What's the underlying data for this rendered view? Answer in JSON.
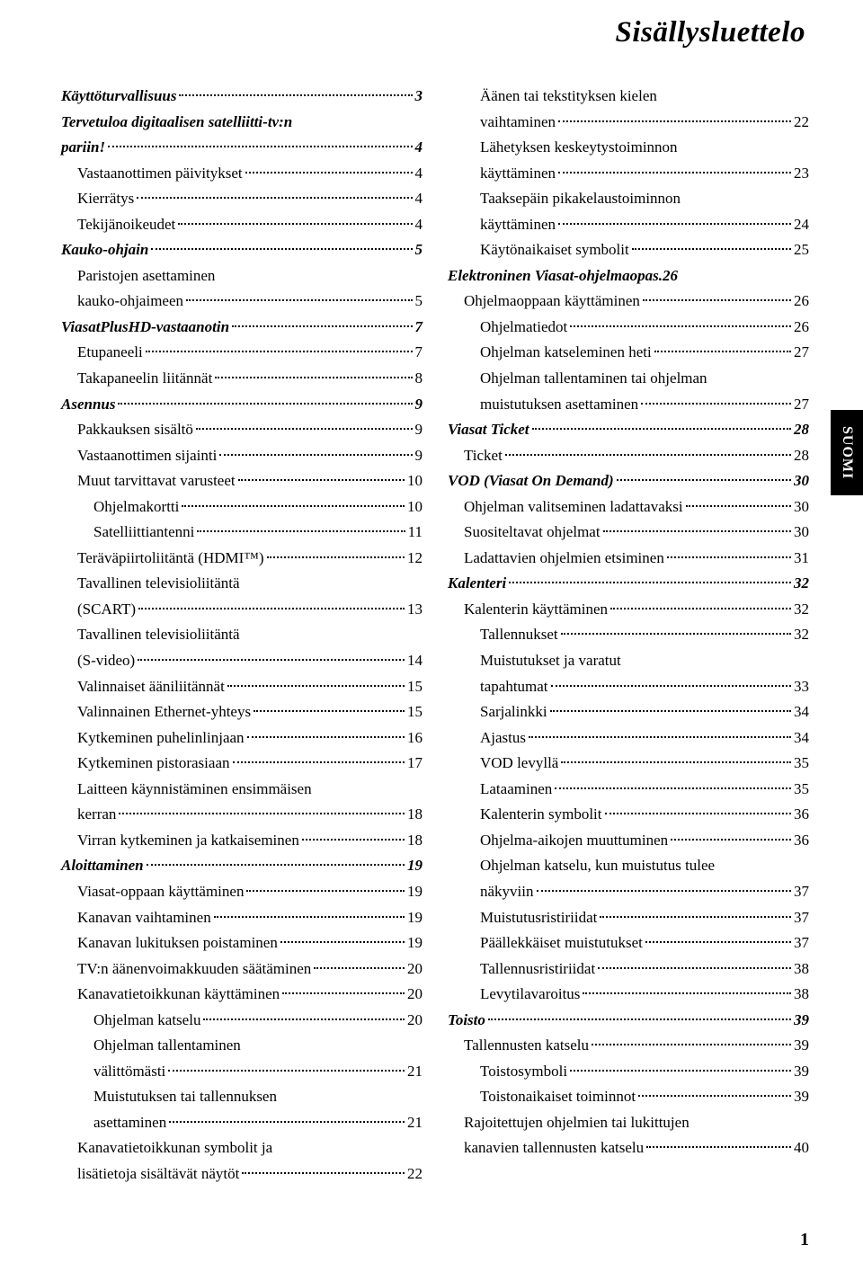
{
  "doc_title": "Sisällysluettelo",
  "side_tab": "SUOMI",
  "page_number": "1",
  "fonts": {
    "title_size_pt": 33,
    "body_size_pt": 17,
    "side_tab_size_pt": 16
  },
  "colors": {
    "text": "#000000",
    "background": "#ffffff",
    "tab_bg": "#000000",
    "tab_text": "#ffffff"
  },
  "left_col": [
    {
      "label": "Käyttöturvallisuus",
      "page": "3",
      "level": 0
    },
    {
      "label": "Tervetuloa digitaalisen satelliitti-tv:n pariin!",
      "page": "4",
      "level": 0
    },
    {
      "label": "Vastaanottimen päivitykset",
      "page": "4",
      "level": 1
    },
    {
      "label": "Kierrätys",
      "page": "4",
      "level": 1
    },
    {
      "label": "Tekijänoikeudet",
      "page": "4",
      "level": 1
    },
    {
      "label": "Kauko-ohjain",
      "page": "5",
      "level": 0
    },
    {
      "label": "Paristojen asettaminen kauko-ohjaimeen",
      "page": "5",
      "level": 1
    },
    {
      "label": "ViasatPlusHD-vastaanotin",
      "page": "7",
      "level": 0
    },
    {
      "label": "Etupaneeli",
      "page": "7",
      "level": 1
    },
    {
      "label": "Takapaneelin liitännät",
      "page": "8",
      "level": 1
    },
    {
      "label": "Asennus",
      "page": "9",
      "level": 0
    },
    {
      "label": "Pakkauksen sisältö",
      "page": "9",
      "level": 1
    },
    {
      "label": "Vastaanottimen sijainti",
      "page": "9",
      "level": 1
    },
    {
      "label": "Muut tarvittavat varusteet",
      "page": "10",
      "level": 1
    },
    {
      "label": "Ohjelmakortti",
      "page": "10",
      "level": 2
    },
    {
      "label": "Satelliittiantenni",
      "page": "11",
      "level": 2
    },
    {
      "label": "Teräväpiirtoliitäntä (HDMI™)",
      "page": "12",
      "level": 1
    },
    {
      "label": "Tavallinen televisioliitäntä (SCART)",
      "page": "13",
      "level": 1
    },
    {
      "label": "Tavallinen televisioliitäntä (S-video)",
      "page": "14",
      "level": 1
    },
    {
      "label": "Valinnaiset ääniliitännät",
      "page": "15",
      "level": 1
    },
    {
      "label": "Valinnainen Ethernet-yhteys",
      "page": "15",
      "level": 1
    },
    {
      "label": "Kytkeminen puhelinlinjaan",
      "page": "16",
      "level": 1
    },
    {
      "label": "Kytkeminen pistorasiaan",
      "page": "17",
      "level": 1
    },
    {
      "label": "Laitteen käynnistäminen ensimmäisen kerran",
      "page": "18",
      "level": 1
    },
    {
      "label": "Virran kytkeminen ja katkaiseminen",
      "page": "18",
      "level": 1
    },
    {
      "label": "Aloittaminen",
      "page": "19",
      "level": 0
    },
    {
      "label": "Viasat-oppaan käyttäminen",
      "page": "19",
      "level": 1
    },
    {
      "label": "Kanavan vaihtaminen",
      "page": "19",
      "level": 1
    },
    {
      "label": "Kanavan lukituksen poistaminen",
      "page": "19",
      "level": 1
    },
    {
      "label": "TV:n äänenvoimakkuuden säätäminen",
      "page": "20",
      "level": 1
    },
    {
      "label": "Kanavatietoikkunan käyttäminen",
      "page": "20",
      "level": 1
    },
    {
      "label": "Ohjelman katselu",
      "page": "20",
      "level": 2
    },
    {
      "label": "Ohjelman tallentaminen välittömästi",
      "page": "21",
      "level": 2
    },
    {
      "label": "Muistutuksen tai tallennuksen asettaminen",
      "page": "21",
      "level": 2
    },
    {
      "label": "Kanavatietoikkunan symbolit ja lisätietoja sisältävät näytöt",
      "page": "22",
      "level": 1
    }
  ],
  "right_col": [
    {
      "label": "Äänen tai tekstityksen kielen vaihtaminen",
      "page": "22",
      "level": 2
    },
    {
      "label": "Lähetyksen keskeytystoiminnon käyttäminen",
      "page": "23",
      "level": 2
    },
    {
      "label": "Taaksepäin pikakelaustoiminnon käyttäminen",
      "page": "24",
      "level": 2
    },
    {
      "label": "Käytönaikaiset symbolit",
      "page": "25",
      "level": 2
    },
    {
      "label": "Elektroninen Viasat-ohjelmaopas",
      "page": "26",
      "level": 0,
      "nodots": true
    },
    {
      "label": "Ohjelmaoppaan käyttäminen",
      "page": "26",
      "level": 1
    },
    {
      "label": "Ohjelmatiedot",
      "page": "26",
      "level": 2
    },
    {
      "label": "Ohjelman katseleminen heti",
      "page": "27",
      "level": 2
    },
    {
      "label": "Ohjelman tallentaminen tai ohjelman muistutuksen asettaminen",
      "page": "27",
      "level": 2
    },
    {
      "label": "Viasat Ticket",
      "page": "28",
      "level": 0
    },
    {
      "label": "Ticket",
      "page": "28",
      "level": 1
    },
    {
      "label": "VOD (Viasat On Demand)",
      "page": "30",
      "level": 0
    },
    {
      "label": "Ohjelman valitseminen ladattavaksi",
      "page": "30",
      "level": 1
    },
    {
      "label": "Suositeltavat ohjelmat",
      "page": "30",
      "level": 1
    },
    {
      "label": "Ladattavien ohjelmien etsiminen",
      "page": "31",
      "level": 1
    },
    {
      "label": "Kalenteri",
      "page": "32",
      "level": 0
    },
    {
      "label": "Kalenterin käyttäminen",
      "page": "32",
      "level": 1
    },
    {
      "label": "Tallennukset",
      "page": "32",
      "level": 2
    },
    {
      "label": "Muistutukset ja varatut tapahtumat",
      "page": "33",
      "level": 2
    },
    {
      "label": "Sarjalinkki",
      "page": "34",
      "level": 2
    },
    {
      "label": "Ajastus",
      "page": "34",
      "level": 2
    },
    {
      "label": "VOD levyllä",
      "page": "35",
      "level": 2
    },
    {
      "label": "Lataaminen",
      "page": "35",
      "level": 2
    },
    {
      "label": "Kalenterin symbolit",
      "page": "36",
      "level": 2
    },
    {
      "label": "Ohjelma-aikojen muuttuminen",
      "page": "36",
      "level": 2
    },
    {
      "label": "Ohjelman katselu, kun muistutus tulee näkyviin",
      "page": "37",
      "level": 2
    },
    {
      "label": "Muistutusristiriidat",
      "page": "37",
      "level": 2
    },
    {
      "label": "Päällekkäiset muistutukset",
      "page": "37",
      "level": 2
    },
    {
      "label": "Tallennusristiriidat",
      "page": "38",
      "level": 2
    },
    {
      "label": "Levytilavaroitus",
      "page": "38",
      "level": 2
    },
    {
      "label": "Toisto",
      "page": "39",
      "level": 0
    },
    {
      "label": "Tallennusten katselu",
      "page": "39",
      "level": 1
    },
    {
      "label": "Toistosymboli",
      "page": "39",
      "level": 2
    },
    {
      "label": "Toistonaikaiset toiminnot",
      "page": "39",
      "level": 2
    },
    {
      "label": "Rajoitettujen ohjelmien tai lukittujen kanavien tallennusten katselu",
      "page": "40",
      "level": 1
    }
  ]
}
